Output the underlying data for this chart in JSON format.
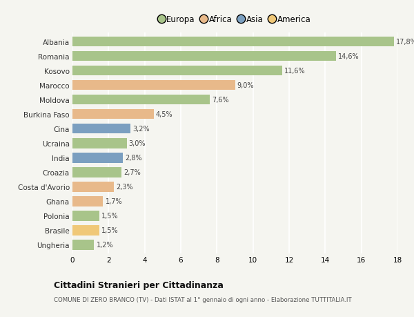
{
  "categories": [
    "Albania",
    "Romania",
    "Kosovo",
    "Marocco",
    "Moldova",
    "Burkina Faso",
    "Cina",
    "Ucraina",
    "India",
    "Croazia",
    "Costa d'Avorio",
    "Ghana",
    "Polonia",
    "Brasile",
    "Ungheria"
  ],
  "values": [
    17.8,
    14.6,
    11.6,
    9.0,
    7.6,
    4.5,
    3.2,
    3.0,
    2.8,
    2.7,
    2.3,
    1.7,
    1.5,
    1.5,
    1.2
  ],
  "labels": [
    "17,8%",
    "14,6%",
    "11,6%",
    "9,0%",
    "7,6%",
    "4,5%",
    "3,2%",
    "3,0%",
    "2,8%",
    "2,7%",
    "2,3%",
    "1,7%",
    "1,5%",
    "1,5%",
    "1,2%"
  ],
  "continents": [
    "Europa",
    "Europa",
    "Europa",
    "Africa",
    "Europa",
    "Africa",
    "Asia",
    "Europa",
    "Asia",
    "Europa",
    "Africa",
    "Africa",
    "Europa",
    "America",
    "Europa"
  ],
  "colors": {
    "Europa": "#a8c48a",
    "Africa": "#e8b98a",
    "Asia": "#7b9fc0",
    "America": "#f0c878"
  },
  "legend_order": [
    "Europa",
    "Africa",
    "Asia",
    "America"
  ],
  "title": "Cittadini Stranieri per Cittadinanza",
  "subtitle": "COMUNE DI ZERO BRANCO (TV) - Dati ISTAT al 1° gennaio di ogni anno - Elaborazione TUTTITALIA.IT",
  "xlim": [
    0,
    18
  ],
  "xticks": [
    0,
    2,
    4,
    6,
    8,
    10,
    12,
    14,
    16,
    18
  ],
  "background_color": "#f5f5f0",
  "grid_color": "#ffffff",
  "bar_height": 0.7
}
